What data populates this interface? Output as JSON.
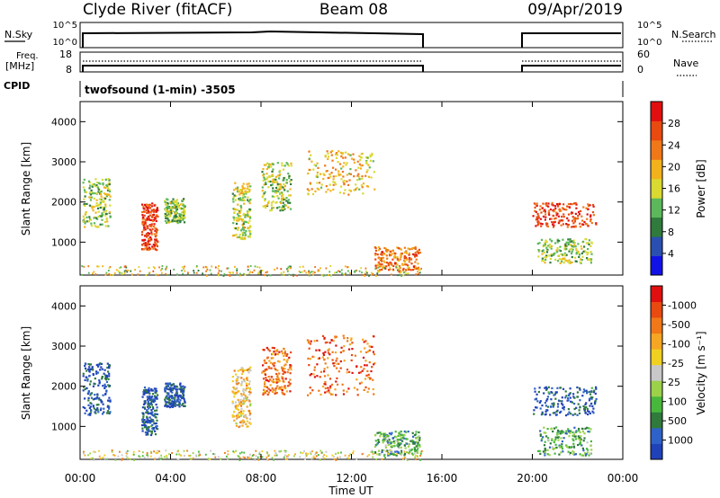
{
  "header": {
    "station": "Clyde River (fitACF)",
    "beam": "Beam 08",
    "date": "09/Apr/2019"
  },
  "top_panels": {
    "nsky_label": "N.Sky",
    "nsky_ticks": [
      "10^5",
      "10^0"
    ],
    "nsearch_label": "N.Search",
    "nsearch_ticks": [
      "10^5",
      "10^0"
    ],
    "freq_label": "Freq.",
    "freq_unit": "[MHz]",
    "freq_ticks": [
      "18",
      "8"
    ],
    "nave_label": "Nave",
    "nave_ticks": [
      "60",
      "0"
    ],
    "cpid_label": "CPID",
    "cpid_text": "twofsound (1-min) -3505"
  },
  "chart_data": [
    {
      "type": "heatmap",
      "name": "power",
      "ylabel": "Slant Range [km]",
      "xlabel": "",
      "x_ticks": [
        "00:00",
        "04:00",
        "08:00",
        "12:00",
        "16:00",
        "20:00",
        "00:00"
      ],
      "x_range_hours": [
        0,
        24
      ],
      "y_range_km": [
        180,
        4500
      ],
      "y_ticks": [
        1000,
        2000,
        3000,
        4000
      ],
      "colorbar": {
        "label": "Power [dB]",
        "ticks": [
          4,
          8,
          12,
          16,
          20,
          24,
          28
        ],
        "colors": [
          "#1212e6",
          "#2b4fb0",
          "#2f7a3c",
          "#5cb85a",
          "#d9d932",
          "#f2b21c",
          "#f07818",
          "#e84a10",
          "#e01010"
        ]
      },
      "data_gap_hours": [
        15.1,
        19.6
      ],
      "clusters": [
        {
          "t0": 0.1,
          "t1": 1.3,
          "r0": 1400,
          "r1": 2600,
          "level": 0.45
        },
        {
          "t0": 2.7,
          "t1": 3.4,
          "r0": 800,
          "r1": 2000,
          "level": 0.85
        },
        {
          "t0": 3.7,
          "t1": 4.6,
          "r0": 1500,
          "r1": 2100,
          "level": 0.4
        },
        {
          "t0": 6.7,
          "t1": 7.5,
          "r0": 1100,
          "r1": 2500,
          "level": 0.5
        },
        {
          "t0": 8.0,
          "t1": 9.3,
          "r0": 1800,
          "r1": 3000,
          "level": 0.45
        },
        {
          "t0": 10.0,
          "t1": 13.0,
          "r0": 2200,
          "r1": 3300,
          "level": 0.6
        },
        {
          "t0": 13.0,
          "t1": 15.0,
          "r0": 300,
          "r1": 900,
          "level": 0.75
        },
        {
          "t0": 20.0,
          "t1": 22.8,
          "r0": 1400,
          "r1": 2000,
          "level": 0.85
        },
        {
          "t0": 20.2,
          "t1": 22.6,
          "r0": 500,
          "r1": 1100,
          "level": 0.45
        }
      ]
    },
    {
      "type": "heatmap",
      "name": "velocity",
      "ylabel": "Slant Range [km]",
      "xlabel": "Time UT",
      "x_ticks": [
        "00:00",
        "04:00",
        "08:00",
        "12:00",
        "16:00",
        "20:00",
        "00:00"
      ],
      "x_range_hours": [
        0,
        24
      ],
      "y_range_km": [
        180,
        4500
      ],
      "y_ticks": [
        1000,
        2000,
        3000,
        4000
      ],
      "colorbar": {
        "label": "Velocity [m s⁻¹]",
        "ticks": [
          "1000",
          "500",
          "100",
          "25",
          "-25",
          "-100",
          "-500",
          "-1000"
        ],
        "colors": [
          "#2042b8",
          "#2f62c8",
          "#2f7a3c",
          "#48b83c",
          "#9bd24a",
          "#c8c8c8",
          "#f0d020",
          "#f5a623",
          "#f07818",
          "#e84a10",
          "#e01010"
        ]
      },
      "data_gap_hours": [
        15.1,
        19.6
      ],
      "clusters": [
        {
          "t0": 0.1,
          "t1": 1.3,
          "r0": 1300,
          "r1": 2600,
          "level": 0.1
        },
        {
          "t0": 2.7,
          "t1": 3.4,
          "r0": 800,
          "r1": 2000,
          "level": 0.1
        },
        {
          "t0": 3.7,
          "t1": 4.6,
          "r0": 1500,
          "r1": 2100,
          "level": 0.1
        },
        {
          "t0": 6.7,
          "t1": 7.5,
          "r0": 1000,
          "r1": 2500,
          "level": 0.62
        },
        {
          "t0": 8.0,
          "t1": 9.3,
          "r0": 1800,
          "r1": 3000,
          "level": 0.8
        },
        {
          "t0": 10.0,
          "t1": 13.0,
          "r0": 1800,
          "r1": 3300,
          "level": 0.82
        },
        {
          "t0": 13.0,
          "t1": 15.0,
          "r0": 300,
          "r1": 900,
          "level": 0.3
        },
        {
          "t0": 20.0,
          "t1": 22.8,
          "r0": 1300,
          "r1": 2000,
          "level": 0.1
        },
        {
          "t0": 20.2,
          "t1": 22.6,
          "r0": 300,
          "r1": 1000,
          "level": 0.3
        }
      ]
    }
  ]
}
